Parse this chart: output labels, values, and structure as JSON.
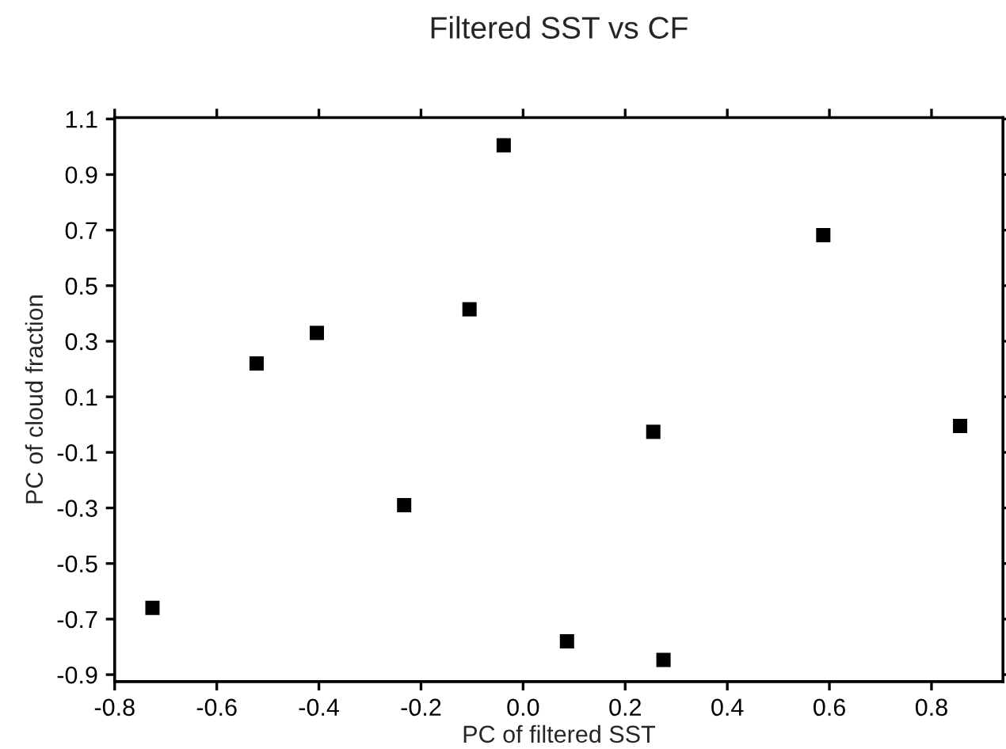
{
  "chart_data": {
    "type": "scatter",
    "title": "Filtered SST vs CF",
    "xlabel": "PC of filtered SST",
    "ylabel": "PC of cloud fraction",
    "marker": "square",
    "grid": false,
    "legend": false,
    "xlim": [
      -0.8,
      0.94
    ],
    "ylim": [
      -0.925,
      1.105
    ],
    "xticks": [
      {
        "value": -0.8,
        "label": "-0.8"
      },
      {
        "value": -0.6,
        "label": "-0.6"
      },
      {
        "value": -0.4,
        "label": "-0.4"
      },
      {
        "value": -0.2,
        "label": "-0.2"
      },
      {
        "value": 0.0,
        "label": "0.0"
      },
      {
        "value": 0.2,
        "label": "0.2"
      },
      {
        "value": 0.4,
        "label": "0.4"
      },
      {
        "value": 0.6,
        "label": "0.6"
      },
      {
        "value": 0.8,
        "label": "0.8"
      }
    ],
    "yticks": [
      {
        "value": -0.9,
        "label": "-0.9"
      },
      {
        "value": -0.7,
        "label": "-0.7"
      },
      {
        "value": -0.5,
        "label": "-0.5"
      },
      {
        "value": -0.3,
        "label": "-0.3"
      },
      {
        "value": -0.1,
        "label": "-0.1"
      },
      0.1,
      0.3,
      0.5,
      0.7,
      0.9,
      1.1
    ],
    "series": [
      {
        "color": "#000000",
        "x": [
          -0.726,
          -0.522,
          -0.404,
          -0.233,
          -0.105,
          -0.038,
          0.086,
          0.275,
          0.255,
          0.588,
          0.856
        ],
        "values": [
          -0.66,
          0.22,
          0.33,
          -0.29,
          0.415,
          1.005,
          -0.78,
          -0.847,
          -0.026,
          0.682,
          -0.005
        ]
      }
    ]
  }
}
